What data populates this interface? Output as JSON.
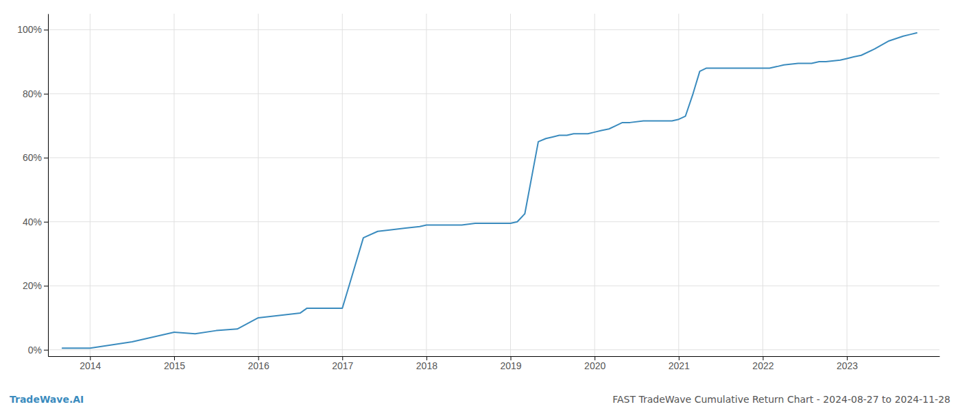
{
  "chart_data": {
    "type": "line",
    "title": "FAST TradeWave Cumulative Return Chart - 2024-08-27 to 2024-11-28",
    "annotations": [
      "TradeWave.AI"
    ],
    "color": "#3a8bbe",
    "grid": true,
    "x": [
      2013.67,
      2014.0,
      2014.5,
      2015.0,
      2015.25,
      2015.5,
      2015.75,
      2016.0,
      2016.5,
      2016.58,
      2016.75,
      2017.0,
      2017.08,
      2017.25,
      2017.42,
      2017.58,
      2017.75,
      2017.92,
      2018.0,
      2018.08,
      2018.17,
      2018.25,
      2018.42,
      2018.58,
      2018.67,
      2018.75,
      2018.92,
      2019.0,
      2019.08,
      2019.17,
      2019.33,
      2019.42,
      2019.5,
      2019.58,
      2019.67,
      2019.75,
      2019.92,
      2020.0,
      2020.08,
      2020.17,
      2020.25,
      2020.33,
      2020.42,
      2020.58,
      2020.75,
      2020.92,
      2021.0,
      2021.08,
      2021.17,
      2021.25,
      2021.33,
      2021.42,
      2021.5,
      2021.58,
      2021.67,
      2021.75,
      2021.92,
      2022.0,
      2022.08,
      2022.17,
      2022.25,
      2022.42,
      2022.58,
      2022.67,
      2022.75,
      2022.92,
      2023.0,
      2023.08,
      2023.17,
      2023.33,
      2023.5,
      2023.67,
      2023.75,
      2023.83
    ],
    "values": [
      0.5,
      0.5,
      2.5,
      5.5,
      5.0,
      6.0,
      6.5,
      10.0,
      11.5,
      13.0,
      13.0,
      13.0,
      20.0,
      35.0,
      37.0,
      37.5,
      38.0,
      38.5,
      39.0,
      39.0,
      39.0,
      39.0,
      39.0,
      39.5,
      39.5,
      39.5,
      39.5,
      39.5,
      40.0,
      42.5,
      65.0,
      66.0,
      66.5,
      67.0,
      67.0,
      67.5,
      67.5,
      68.0,
      68.5,
      69.0,
      70.0,
      71.0,
      71.0,
      71.5,
      71.5,
      71.5,
      72.0,
      73.0,
      80.0,
      87.0,
      88.0,
      88.0,
      88.0,
      88.0,
      88.0,
      88.0,
      88.0,
      88.0,
      88.0,
      88.5,
      89.0,
      89.5,
      89.5,
      90.0,
      90.0,
      90.5,
      91.0,
      91.5,
      92.0,
      94.0,
      96.5,
      98.0,
      98.5,
      99.0
    ],
    "xlim": [
      2013.5,
      2024.1
    ],
    "xticks": [
      2014,
      2015,
      2016,
      2017,
      2018,
      2019,
      2020,
      2021,
      2022,
      2023
    ],
    "ylim": [
      -2,
      105
    ],
    "yticks": [
      {
        "value": 0,
        "label": "0%"
      },
      {
        "value": 20,
        "label": "20%"
      },
      {
        "value": 40,
        "label": "40%"
      },
      {
        "value": 60,
        "label": "60%"
      },
      {
        "value": 80,
        "label": "80%"
      },
      {
        "value": 100,
        "label": "100%"
      }
    ]
  }
}
